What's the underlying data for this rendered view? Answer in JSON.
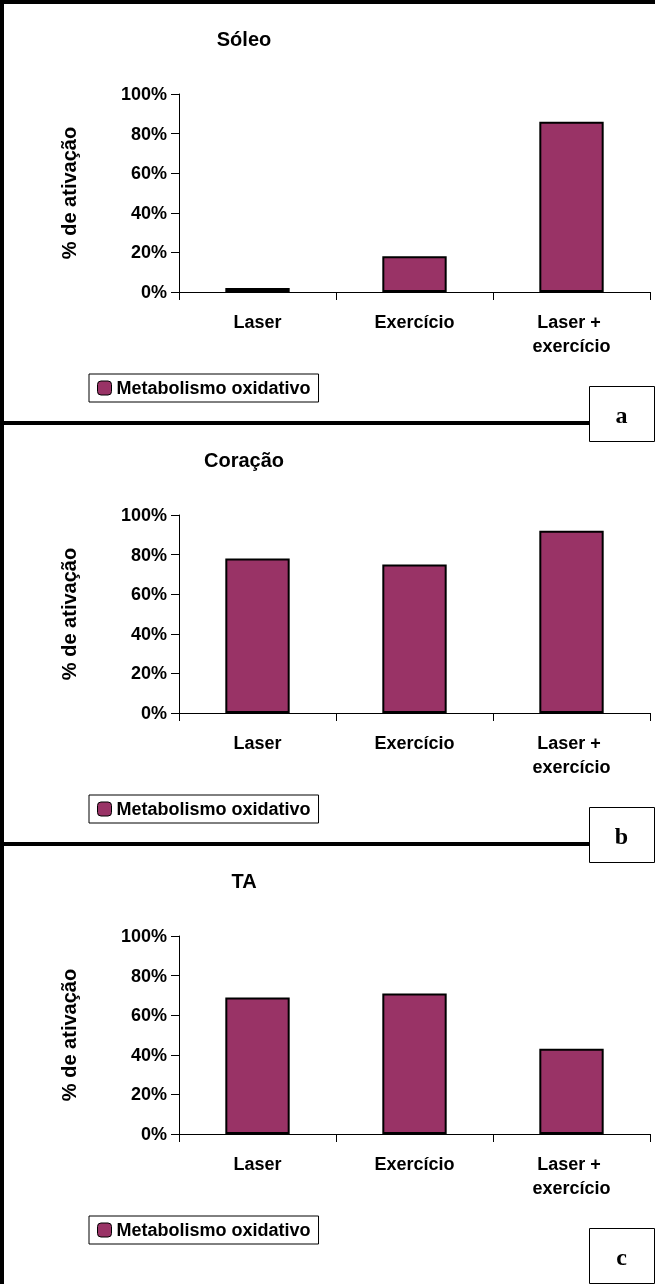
{
  "chart_data": [
    {
      "type": "bar",
      "title": "Sóleo",
      "ylabel": "% de ativação",
      "categories": [
        "Laser",
        "Exercício",
        "Laser + exercício"
      ],
      "series": [
        {
          "name": "Metabolismo oxidativo",
          "color": "#993366",
          "values": [
            2,
            18,
            86
          ]
        }
      ],
      "ylim": [
        0,
        100
      ],
      "yticks": [
        {
          "value": 0,
          "label": "0%"
        },
        {
          "value": 20,
          "label": "20%"
        },
        {
          "value": 40,
          "label": "40%"
        },
        {
          "value": 60,
          "label": "60%"
        },
        {
          "value": 80,
          "label": "80%"
        },
        {
          "value": 100,
          "label": "100%"
        }
      ],
      "grid": false,
      "legend": "bottom",
      "annotations": [
        "a"
      ]
    },
    {
      "type": "bar",
      "title": "Coração",
      "ylabel": "% de ativação",
      "categories": [
        "Laser",
        "Exercício",
        "Laser + exercício"
      ],
      "series": [
        {
          "name": "Metabolismo oxidativo",
          "color": "#993366",
          "values": [
            78,
            75,
            92
          ]
        }
      ],
      "ylim": [
        0,
        100
      ],
      "yticks": [
        {
          "value": 0,
          "label": "0%"
        },
        {
          "value": 20,
          "label": "20%"
        },
        {
          "value": 40,
          "label": "40%"
        },
        {
          "value": 60,
          "label": "60%"
        },
        {
          "value": 80,
          "label": "80%"
        },
        {
          "value": 100,
          "label": "100%"
        }
      ],
      "grid": false,
      "legend": "bottom",
      "annotations": [
        "b"
      ]
    },
    {
      "type": "bar",
      "title": "TA",
      "ylabel": "% de ativação",
      "categories": [
        "Laser",
        "Exercício",
        "Laser + exercício"
      ],
      "series": [
        {
          "name": "Metabolismo oxidativo",
          "color": "#993366",
          "values": [
            69,
            71,
            43
          ]
        }
      ],
      "ylim": [
        0,
        100
      ],
      "yticks": [
        {
          "value": 0,
          "label": "0%"
        },
        {
          "value": 20,
          "label": "20%"
        },
        {
          "value": 40,
          "label": "40%"
        },
        {
          "value": 60,
          "label": "60%"
        },
        {
          "value": 80,
          "label": "80%"
        },
        {
          "value": 100,
          "label": "100%"
        }
      ],
      "grid": false,
      "legend": "bottom",
      "annotations": [
        "c"
      ]
    }
  ]
}
